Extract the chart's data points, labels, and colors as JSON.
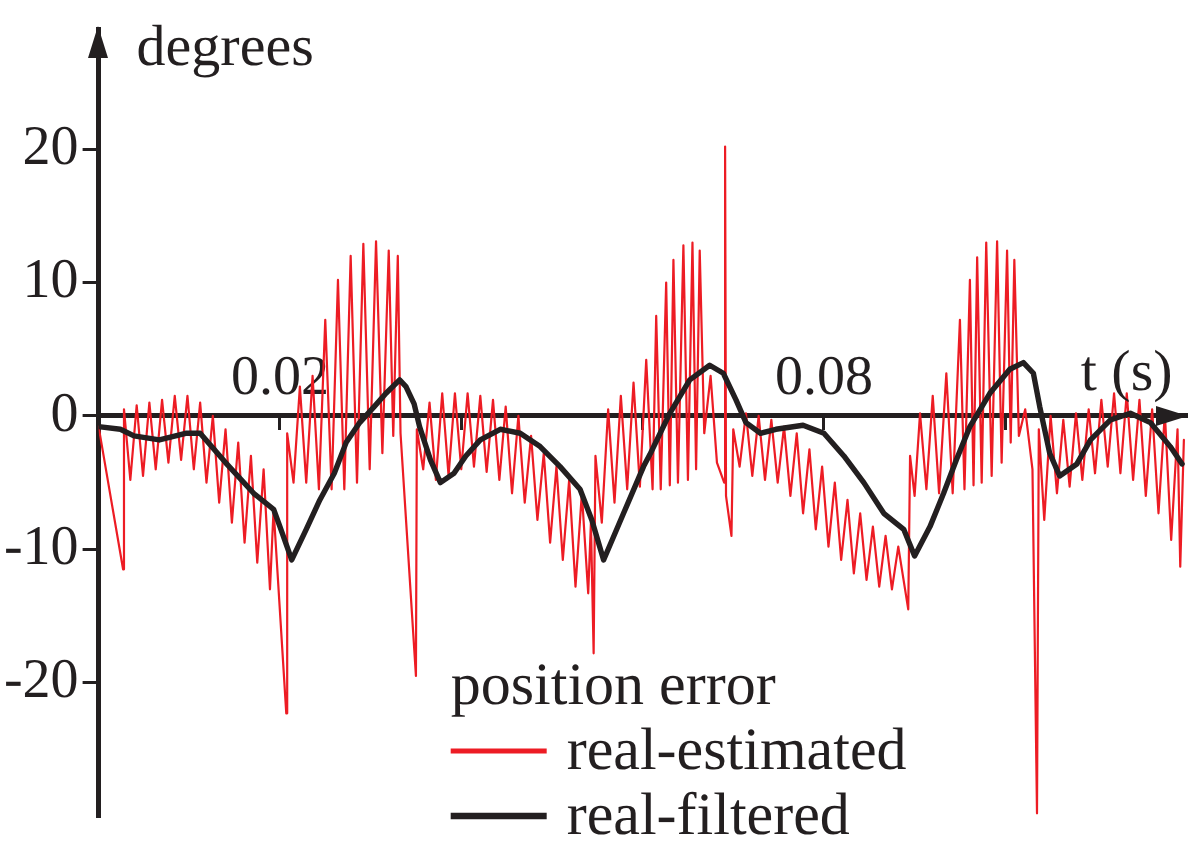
{
  "chart_data": {
    "type": "line",
    "xlabel": "t (s)",
    "ylabel": "degrees",
    "legend_title": "position error",
    "legend": "bottom",
    "xlim": [
      0,
      0.12
    ],
    "ylim": [
      -30,
      29
    ],
    "xticks": [
      0.02,
      {
        "value": 0.04,
        "label": null
      },
      {
        "value": 0.06,
        "label": null
      },
      0.08,
      {
        "value": 0.1,
        "label": null
      }
    ],
    "yticks": [
      -20,
      -10,
      0,
      10,
      20
    ],
    "series": [
      {
        "name": "real-estimated",
        "color": "#ed1c24",
        "x": [
          0,
          0.0027,
          0.0028,
          0.0035,
          0.0042,
          0.0049,
          0.0056,
          0.0063,
          0.007,
          0.0077,
          0.0084,
          0.0091,
          0.0098,
          0.0105,
          0.0112,
          0.0119,
          0.0126,
          0.0133,
          0.014,
          0.0147,
          0.0154,
          0.0161,
          0.0168,
          0.0175,
          0.0182,
          0.0189,
          0.0193,
          0.0207,
          0.0208,
          0.0215,
          0.0222,
          0.0229,
          0.0236,
          0.0243,
          0.025,
          0.0257,
          0.0264,
          0.0271,
          0.0278,
          0.0285,
          0.0292,
          0.0299,
          0.0306,
          0.0313,
          0.032,
          0.0325,
          0.033,
          0.0333,
          0.035,
          0.0351,
          0.0358,
          0.0365,
          0.0372,
          0.0379,
          0.0386,
          0.0393,
          0.04,
          0.0407,
          0.0414,
          0.0421,
          0.0428,
          0.0435,
          0.0442,
          0.0449,
          0.0456,
          0.0463,
          0.047,
          0.0477,
          0.0484,
          0.0491,
          0.0498,
          0.0505,
          0.0512,
          0.0519,
          0.0526,
          0.0533,
          0.054,
          0.0543,
          0.0546,
          0.0548,
          0.0555,
          0.0562,
          0.0569,
          0.0576,
          0.0583,
          0.059,
          0.0597,
          0.0604,
          0.0611,
          0.0615,
          0.062,
          0.0626,
          0.063,
          0.0634,
          0.0639,
          0.0645,
          0.065,
          0.0655,
          0.0659,
          0.0663,
          0.0668,
          0.0675,
          0.0682,
          0.069,
          0.0691,
          0.0692,
          0.0698,
          0.07,
          0.0707,
          0.0714,
          0.0721,
          0.0728,
          0.0735,
          0.0742,
          0.0749,
          0.0756,
          0.0763,
          0.077,
          0.0777,
          0.0784,
          0.0791,
          0.0798,
          0.0805,
          0.0812,
          0.0819,
          0.0826,
          0.0833,
          0.084,
          0.0847,
          0.0854,
          0.0861,
          0.0868,
          0.0875,
          0.0882,
          0.0893,
          0.0895,
          0.09,
          0.0906,
          0.0913,
          0.092,
          0.0927,
          0.0935,
          0.0942,
          0.095,
          0.0955,
          0.0961,
          0.0965,
          0.0969,
          0.0974,
          0.0979,
          0.0985,
          0.0991,
          0.0996,
          0.1002,
          0.1006,
          0.101,
          0.1015,
          0.1022,
          0.103,
          0.1035,
          0.1037,
          0.1043,
          0.105,
          0.1057,
          0.1064,
          0.1071,
          0.1078,
          0.1085,
          0.1092,
          0.1099,
          0.1106,
          0.1113,
          0.112,
          0.1127,
          0.1134,
          0.1141,
          0.1148,
          0.1155,
          0.1162,
          0.1169,
          0.1176,
          0.1183,
          0.119,
          0.1193,
          0.1197
        ],
        "values": [
          -0.8,
          -11.5,
          0.5,
          -4.8,
          0.8,
          -4.5,
          1.0,
          -4.0,
          1.2,
          -3.5,
          1.5,
          -3.3,
          1.5,
          -4.0,
          1.0,
          -5.0,
          0.0,
          -6.5,
          -1.0,
          -8.0,
          -2.0,
          -9.5,
          -3.0,
          -11.0,
          -4.0,
          -13.0,
          -7.0,
          -22.3,
          -1.3,
          -5.0,
          2.2,
          -5.0,
          3.0,
          -5.5,
          7.2,
          -5.5,
          10.2,
          -5.5,
          12.0,
          -5.0,
          12.9,
          -4.0,
          13.1,
          -2.8,
          12.4,
          -1.5,
          12.0,
          -1.3,
          -19.5,
          -1.0,
          -4.0,
          1.0,
          -4.8,
          1.7,
          -4.5,
          1.7,
          -4.0,
          1.7,
          -3.8,
          1.5,
          -4.2,
          1.2,
          -4.8,
          0.7,
          -5.8,
          0.0,
          -6.5,
          -1.5,
          -7.8,
          -2.8,
          -9.5,
          -3.8,
          -10.8,
          -4.8,
          -12.8,
          -5.8,
          -13.3,
          -8.0,
          -17.8,
          -3.0,
          -8.0,
          0.5,
          -6.5,
          1.5,
          -5.5,
          2.5,
          -5.3,
          4.2,
          -5.5,
          7.5,
          -5.5,
          10.0,
          -5.2,
          11.7,
          -5.0,
          12.8,
          -4.8,
          13.0,
          -4.0,
          12.4,
          -1.3,
          3.0,
          -3.5,
          -5.0,
          20.2,
          -6.0,
          -9.0,
          -1.0,
          -3.8,
          0.2,
          -4.5,
          0.0,
          -4.8,
          -0.3,
          -5.0,
          -0.8,
          -6.0,
          -1.3,
          -7.3,
          -2.5,
          -8.5,
          -3.8,
          -9.8,
          -5.0,
          -10.8,
          -6.3,
          -11.8,
          -7.3,
          -12.3,
          -8.3,
          -12.8,
          -9.0,
          -13.0,
          -9.8,
          -14.5,
          -3.0,
          -6.0,
          0.2,
          -5.5,
          1.5,
          -5.8,
          3.2,
          -5.8,
          7.2,
          -5.5,
          10.2,
          -5.2,
          11.9,
          -5.0,
          13.0,
          -4.5,
          13.1,
          -3.5,
          12.4,
          -2.0,
          11.7,
          -1.5,
          0.5,
          -4.0,
          -29.8,
          -1.0,
          -7.8,
          0.0,
          -5.8,
          -0.3,
          -5.3,
          0.2,
          -4.8,
          0.5,
          -4.3,
          1.2,
          -3.8,
          1.7,
          -4.3,
          1.7,
          -4.8,
          1.2,
          -6.0,
          0.5,
          -7.3,
          0.2,
          -9.3,
          -1.0,
          -11.3,
          -1.8
        ]
      },
      {
        "name": "real-filtered",
        "color": "#231f20",
        "x": [
          0,
          0.0024,
          0.0039,
          0.0067,
          0.0096,
          0.0112,
          0.014,
          0.0171,
          0.0193,
          0.02,
          0.0213,
          0.0229,
          0.0244,
          0.026,
          0.0273,
          0.0288,
          0.0304,
          0.0317,
          0.0332,
          0.0339,
          0.0348,
          0.0354,
          0.0366,
          0.0377,
          0.0392,
          0.0405,
          0.0421,
          0.0443,
          0.0465,
          0.0487,
          0.0509,
          0.0531,
          0.0544,
          0.0557,
          0.0579,
          0.0601,
          0.0608,
          0.063,
          0.0652,
          0.0674,
          0.0689,
          0.0703,
          0.0714,
          0.073,
          0.0747,
          0.0777,
          0.08,
          0.0822,
          0.0844,
          0.0866,
          0.0888,
          0.09,
          0.0917,
          0.0932,
          0.0946,
          0.0961,
          0.0983,
          0.1005,
          0.102,
          0.1031,
          0.1038,
          0.1049,
          0.106,
          0.1079,
          0.1094,
          0.1116,
          0.1138,
          0.116,
          0.1182,
          0.1195
        ],
        "values": [
          -0.8,
          -1.0,
          -1.5,
          -1.8,
          -1.3,
          -1.3,
          -3.5,
          -5.8,
          -7.0,
          -8.3,
          -10.8,
          -8.5,
          -6.3,
          -4.3,
          -2.0,
          -0.5,
          0.7,
          1.7,
          2.7,
          2.2,
          0.9,
          -0.8,
          -3.3,
          -5.0,
          -4.3,
          -3.0,
          -1.8,
          -1.0,
          -1.3,
          -2.3,
          -3.8,
          -5.5,
          -7.8,
          -10.8,
          -7.3,
          -3.8,
          -2.9,
          0.2,
          2.7,
          3.8,
          3.2,
          1.2,
          -0.5,
          -1.3,
          -1.0,
          -0.7,
          -1.3,
          -3.0,
          -5.0,
          -7.3,
          -8.5,
          -10.5,
          -8.3,
          -5.8,
          -3.3,
          -0.8,
          1.7,
          3.5,
          4.0,
          3.2,
          0.7,
          -2.8,
          -4.5,
          -3.6,
          -1.8,
          -0.3,
          0.2,
          -0.5,
          -2.3,
          -3.6
        ]
      }
    ]
  }
}
